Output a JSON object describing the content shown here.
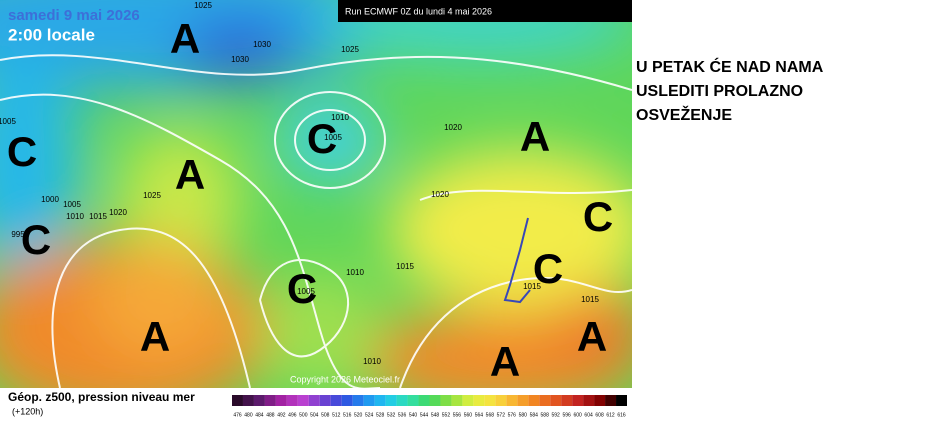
{
  "map": {
    "date": "samedi 9 mai 2026",
    "time": "2:00 locale",
    "run": "Run ECMWF 0Z du lundi 4 mai 2026",
    "copyright": "Copyright 2026 Meteociel.fr",
    "systems": [
      "A",
      "C",
      "A",
      "C",
      "C",
      "A",
      "C",
      "A",
      "C",
      "C",
      "A",
      "A"
    ],
    "isobar_labels": [
      "1025",
      "1030",
      "1030",
      "1025",
      "1010",
      "1005",
      "1020",
      "1005",
      "1000",
      "1005",
      "1010",
      "1015",
      "1020",
      "1025",
      "995",
      "1010",
      "1015",
      "1005",
      "1020",
      "1015",
      "1015",
      "1010"
    ]
  },
  "legend": {
    "title": "Géop. z500, pression niveau mer",
    "lead": "(+120h)",
    "scale": [
      476,
      480,
      484,
      488,
      492,
      496,
      500,
      504,
      508,
      512,
      516,
      520,
      524,
      528,
      532,
      536,
      540,
      544,
      548,
      552,
      556,
      560,
      564,
      568,
      572,
      576,
      580,
      584,
      588,
      592,
      596,
      600,
      604,
      608,
      612,
      616
    ]
  },
  "caption": [
    "U PETAK ĆE NAD NAMA",
    "USLEDITI PROLAZNO",
    "OSVEŽENJE"
  ]
}
